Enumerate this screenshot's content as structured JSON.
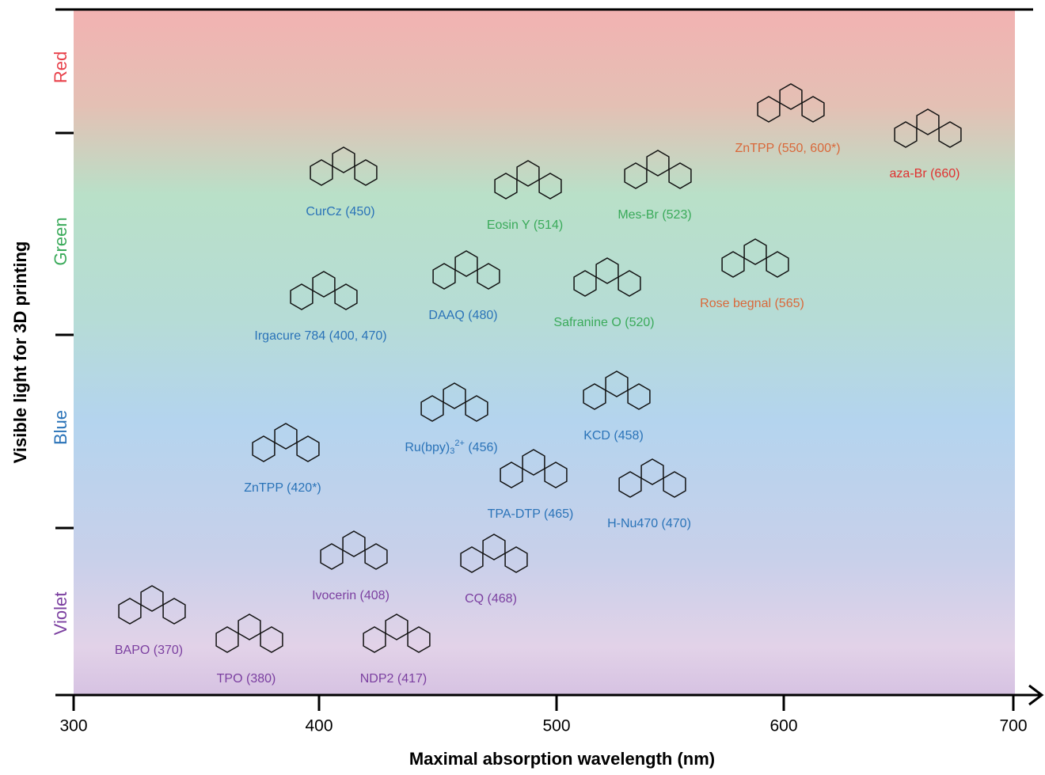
{
  "y_axis": {
    "title": "Visible light for 3D printing",
    "bands": [
      {
        "label": "Red",
        "color": "#e8404a"
      },
      {
        "label": "Green",
        "color": "#3aaa5a"
      },
      {
        "label": "Blue",
        "color": "#2a73b8"
      },
      {
        "label": "Violet",
        "color": "#7b3fa0"
      }
    ]
  },
  "x_axis": {
    "title": "Maximal absorption wavelength (nm)",
    "ticks": [
      300,
      400,
      500,
      600,
      700
    ]
  },
  "compounds": [
    {
      "label": "CurCz (450)",
      "color": "#2a73b8"
    },
    {
      "label": "Eosin Y (514)",
      "color": "#3aaa5a"
    },
    {
      "label": "Mes-Br (523)",
      "color": "#3aaa5a"
    },
    {
      "label": "ZnTPP (550, 600*)",
      "color": "#d9683a"
    },
    {
      "label": "aza-Br (660)",
      "color": "#e03030"
    },
    {
      "label": "Rose begnal (565)",
      "color": "#d9683a"
    },
    {
      "label": "Safranine O (520)",
      "color": "#3aaa5a"
    },
    {
      "label": "DAAQ (480)",
      "color": "#2a73b8"
    },
    {
      "label": "Irgacure 784 (400, 470)",
      "color": "#2a73b8"
    },
    {
      "label": [
        "Ru(bpy)",
        "3",
        "2+",
        " (456)"
      ],
      "color": "#2a73b8"
    },
    {
      "label": "KCD (458)",
      "color": "#2a73b8"
    },
    {
      "label": "ZnTPP (420*)",
      "color": "#2a73b8"
    },
    {
      "label": "TPA-DTP (465)",
      "color": "#2a73b8"
    },
    {
      "label": "H-Nu470 (470)",
      "color": "#2a73b8"
    },
    {
      "label": "Ivocerin (408)",
      "color": "#7b3fa0"
    },
    {
      "label": "CQ (468)",
      "color": "#7b3fa0"
    },
    {
      "label": "BAPO (370)",
      "color": "#7b3fa0"
    },
    {
      "label": "TPO (380)",
      "color": "#7b3fa0"
    },
    {
      "label": "NDP2 (417)",
      "color": "#7b3fa0"
    }
  ]
}
